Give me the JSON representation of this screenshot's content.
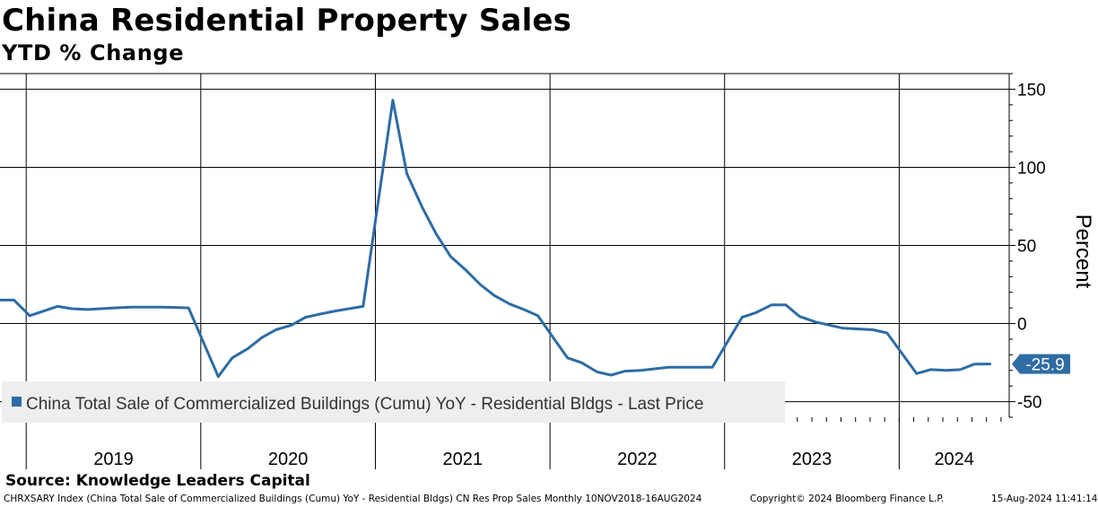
{
  "header": {
    "title": "China Residential Property Sales",
    "subtitle": "YTD % Change"
  },
  "footer": {
    "source": "Source: Knowledge Leaders Capital",
    "ticker_line": "CHRXSARY Index (China Total Sale of Commercialized Buildings (Cumu) YoY - Residential Bldgs) CN Res Prop Sales  Monthly 10NOV2018-16AUG2024",
    "copyright": "Copyright© 2024 Bloomberg Finance L.P.",
    "timestamp": "15-Aug-2024 11:41:14"
  },
  "colors": {
    "series": "#2e6ca4",
    "grid": "#000000",
    "legend_bg": "#eeeeee"
  },
  "chart_data": {
    "type": "line",
    "ylabel": "Percent",
    "ylim": [
      -60,
      160
    ],
    "xlim": [
      2018.85,
      2024.63
    ],
    "y_ticks": [
      150,
      100,
      50,
      0,
      -50
    ],
    "x_year_labels": [
      "2019",
      "2020",
      "2021",
      "2022",
      "2023",
      "2024"
    ],
    "legend": {
      "label": "China Total Sale of Commercialized Buildings (Cumu) YoY - Residential Bldgs - Last Price",
      "position": "bottom-left"
    },
    "last_value_label": "-25.9",
    "series": [
      {
        "name": "China Total Sale of Commercialized Buildings (Cumu) YoY - Residential Bldgs - Last Price",
        "x": [
          2018.85,
          2018.93,
          2019.02,
          2019.18,
          2019.26,
          2019.35,
          2019.43,
          2019.51,
          2019.6,
          2019.68,
          2019.77,
          2019.85,
          2019.93,
          2020.1,
          2020.18,
          2020.27,
          2020.35,
          2020.43,
          2020.52,
          2020.6,
          2020.68,
          2020.77,
          2020.85,
          2020.93,
          2021.1,
          2021.18,
          2021.27,
          2021.35,
          2021.43,
          2021.52,
          2021.6,
          2021.68,
          2021.77,
          2021.85,
          2021.93,
          2022.1,
          2022.18,
          2022.27,
          2022.35,
          2022.43,
          2022.52,
          2022.6,
          2022.68,
          2022.77,
          2022.85,
          2022.93,
          2023.1,
          2023.18,
          2023.27,
          2023.35,
          2023.43,
          2023.52,
          2023.6,
          2023.68,
          2023.77,
          2023.85,
          2023.93,
          2024.1,
          2024.18,
          2024.27,
          2024.35,
          2024.43,
          2024.52
        ],
        "values": [
          15,
          15,
          5,
          11,
          9.5,
          9,
          9.5,
          10,
          10.5,
          10.5,
          10.5,
          10.3,
          10.0,
          -34,
          -22,
          -16,
          -9,
          -4,
          -1,
          4,
          6,
          8,
          9.5,
          11,
          143,
          96,
          74,
          57,
          43,
          34,
          25,
          18,
          12.5,
          9,
          5,
          -22,
          -25,
          -31,
          -33,
          -30.5,
          -30,
          -29,
          -28,
          -28,
          -28,
          -28,
          4,
          7,
          12,
          12,
          4.5,
          1,
          -1,
          -3,
          -3.5,
          -4,
          -6,
          -32,
          -29.5,
          -30,
          -29.5,
          -26,
          -25.9
        ]
      }
    ]
  }
}
